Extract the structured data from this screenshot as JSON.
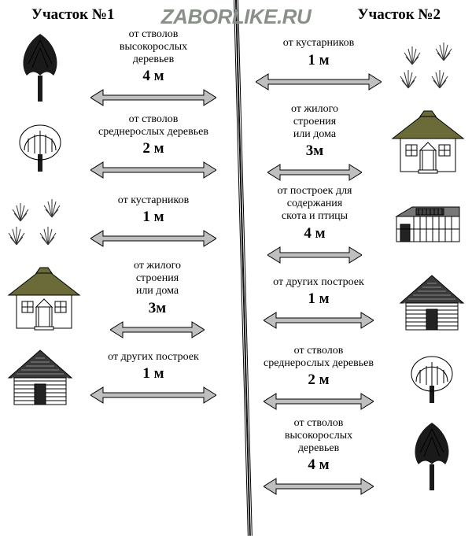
{
  "watermark": "ZaborLike.ru",
  "header_left": "Участок №1",
  "header_right": "Участок №2",
  "arrow": {
    "fill": "#bfbfbf",
    "stroke": "#000000",
    "length_long": 160,
    "length_mid": 140,
    "length_short": 120
  },
  "icons": {
    "tall_tree_fill": "#1a1a1a",
    "bush_stroke": "#333333",
    "house_roof": "#6b6b3a",
    "house_wall": "#ffffff",
    "house_line": "#000000",
    "barn_fill": "#777777",
    "cabin_fill": "#3a3a3a"
  },
  "left_rows": [
    {
      "icon": "tall_tree",
      "label": "от стволов\nвысокорослых\nдеревьев",
      "dist": "4 м",
      "arrow_len": 160
    },
    {
      "icon": "mid_tree",
      "label": "от стволов\nсреднерослых деревьев",
      "dist": "2 м",
      "arrow_len": 160
    },
    {
      "icon": "bushes",
      "label": "от кустарников",
      "dist": "1 м",
      "arrow_len": 160
    },
    {
      "icon": "house",
      "label": "от жилого\nстроения\nили дома",
      "dist": "3м",
      "arrow_len": 120
    },
    {
      "icon": "cabin",
      "label": "от других построек",
      "dist": "1 м",
      "arrow_len": 160
    }
  ],
  "right_rows": [
    {
      "icon": "bushes",
      "label": "от кустарников",
      "dist": "1 м",
      "arrow_len": 160
    },
    {
      "icon": "house",
      "label": "от жилого\nстроения\nили дома",
      "dist": "3м",
      "arrow_len": 120
    },
    {
      "icon": "barn",
      "label": "от построек для\nсодержания\nскота и птицы",
      "dist": "4 м",
      "arrow_len": 120
    },
    {
      "icon": "cabin",
      "label": "от других построек",
      "dist": "1 м",
      "arrow_len": 140
    },
    {
      "icon": "mid_tree",
      "label": "от стволов\nсреднерослых деревьев",
      "dist": "2 м",
      "arrow_len": 140
    },
    {
      "icon": "tall_tree",
      "label": "от стволов\nвысокорослых\nдеревьев",
      "dist": "4 м",
      "arrow_len": 140
    }
  ]
}
